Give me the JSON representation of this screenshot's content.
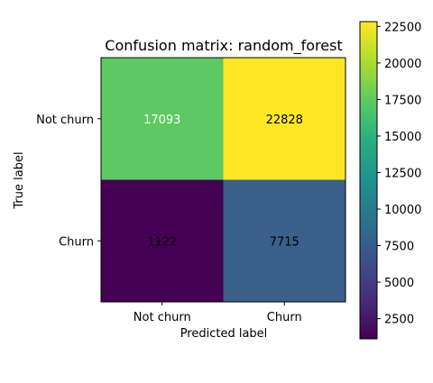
{
  "chart_data": {
    "type": "heatmap",
    "title": "Confusion matrix: random_forest",
    "xlabel": "Predicted label",
    "ylabel": "True label",
    "x_categories": [
      "Not churn",
      "Churn"
    ],
    "y_categories": [
      "Not churn",
      "Churn"
    ],
    "values": [
      [
        17093,
        22828
      ],
      [
        1122,
        7715
      ]
    ],
    "colormap": "viridis",
    "colorbar": {
      "min": 1122,
      "max": 22828,
      "ticks": [
        2500,
        5000,
        7500,
        10000,
        12500,
        15000,
        17500,
        20000,
        22500
      ]
    },
    "cell_colors": [
      [
        "#5ec962",
        "#fde725"
      ],
      [
        "#440154",
        "#3a5f8a"
      ]
    ],
    "text_colors": [
      [
        "#ffffff",
        "#000000"
      ],
      [
        "#000000",
        "#000000"
      ]
    ]
  }
}
